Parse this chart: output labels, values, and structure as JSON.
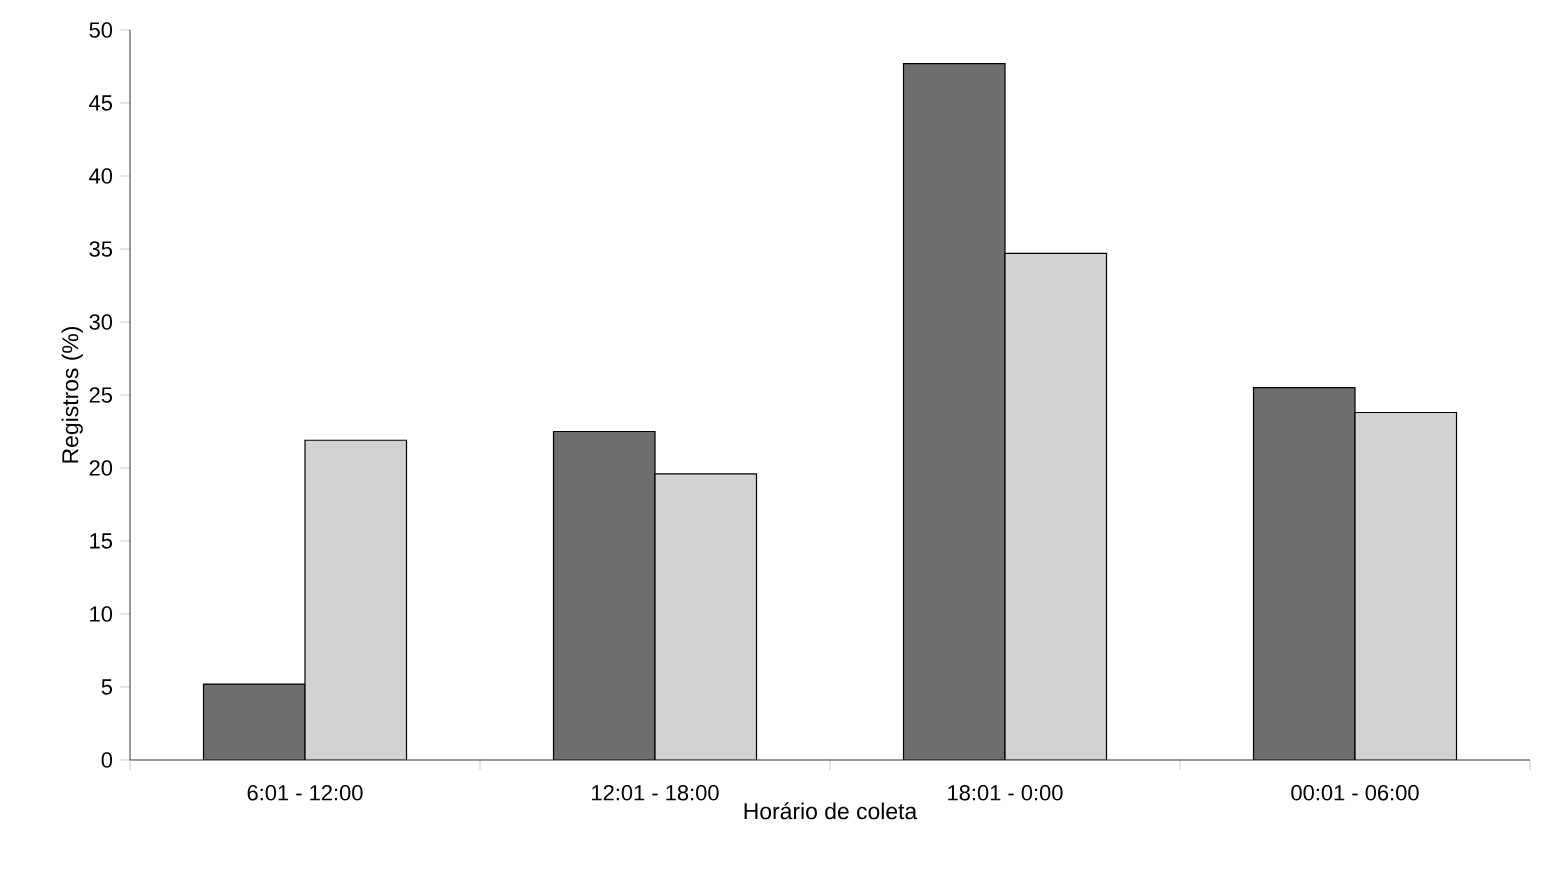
{
  "chart_data": {
    "type": "bar",
    "xlabel": "Horário de coleta",
    "ylabel": "Registros (%)",
    "categories": [
      "6:01 - 12:00",
      "12:01 - 18:00",
      "18:01 - 0:00",
      "00:01 - 06:00"
    ],
    "series": [
      {
        "color": "#6d6e70",
        "values": [
          5.2,
          22.5,
          47.7,
          25.5
        ]
      },
      {
        "color": "#d1d2d4",
        "values": [
          21.9,
          19.6,
          34.7,
          23.8
        ]
      }
    ],
    "ylim": [
      0,
      50
    ],
    "yticks": [
      0,
      5,
      10,
      15,
      20,
      25,
      30,
      35,
      40,
      45,
      50
    ]
  }
}
